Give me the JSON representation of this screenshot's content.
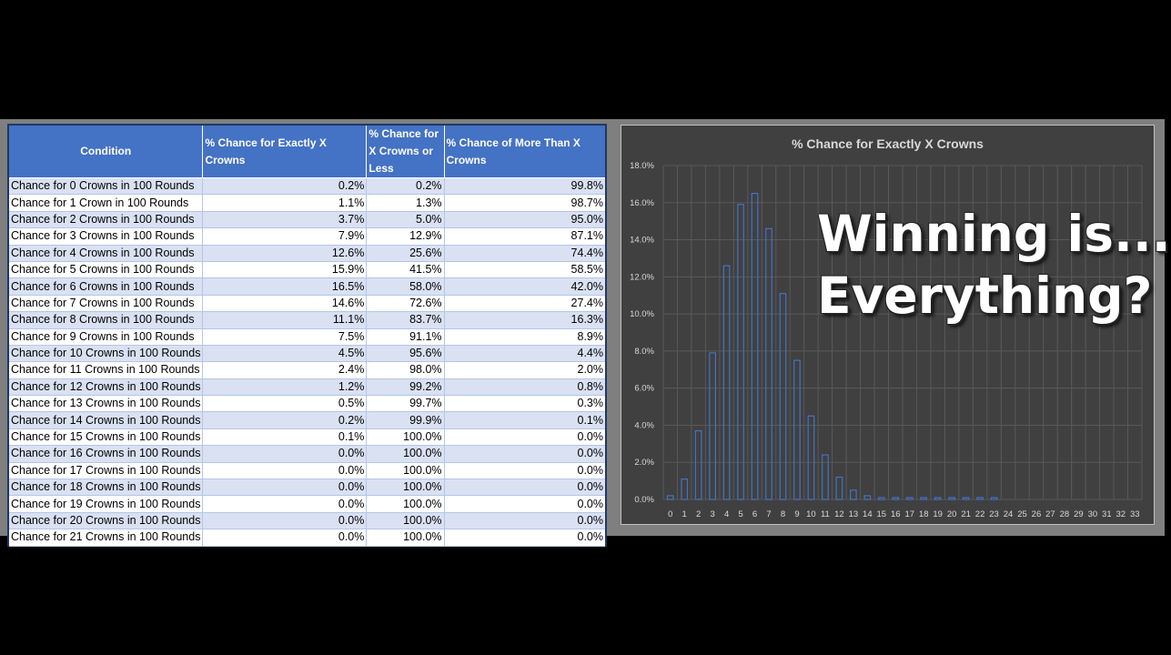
{
  "table": {
    "headers": [
      "Condition",
      "% Chance for Exactly X Crowns",
      "% Chance for X Crowns or Less",
      "% Chance of More Than X Crowns"
    ],
    "rows": [
      [
        "Chance for 0 Crowns in 100 Rounds",
        "0.2%",
        "0.2%",
        "99.8%"
      ],
      [
        "Chance for 1 Crown in 100 Rounds",
        "1.1%",
        "1.3%",
        "98.7%"
      ],
      [
        "Chance for 2 Crowns in 100 Rounds",
        "3.7%",
        "5.0%",
        "95.0%"
      ],
      [
        "Chance for 3 Crowns in 100 Rounds",
        "7.9%",
        "12.9%",
        "87.1%"
      ],
      [
        "Chance for 4 Crowns in 100 Rounds",
        "12.6%",
        "25.6%",
        "74.4%"
      ],
      [
        "Chance for 5 Crowns in 100 Rounds",
        "15.9%",
        "41.5%",
        "58.5%"
      ],
      [
        "Chance for 6 Crowns in 100 Rounds",
        "16.5%",
        "58.0%",
        "42.0%"
      ],
      [
        "Chance for 7 Crowns in 100 Rounds",
        "14.6%",
        "72.6%",
        "27.4%"
      ],
      [
        "Chance for 8 Crowns in 100 Rounds",
        "11.1%",
        "83.7%",
        "16.3%"
      ],
      [
        "Chance for 9 Crowns in 100 Rounds",
        "7.5%",
        "91.1%",
        "8.9%"
      ],
      [
        "Chance for 10 Crowns in 100 Rounds",
        "4.5%",
        "95.6%",
        "4.4%"
      ],
      [
        "Chance for 11 Crowns in 100 Rounds",
        "2.4%",
        "98.0%",
        "2.0%"
      ],
      [
        "Chance for 12 Crowns in 100 Rounds",
        "1.2%",
        "99.2%",
        "0.8%"
      ],
      [
        "Chance for 13 Crowns in 100 Rounds",
        "0.5%",
        "99.7%",
        "0.3%"
      ],
      [
        "Chance for 14 Crowns in 100 Rounds",
        "0.2%",
        "99.9%",
        "0.1%"
      ],
      [
        "Chance for 15 Crowns in 100 Rounds",
        "0.1%",
        "100.0%",
        "0.0%"
      ],
      [
        "Chance for 16 Crowns in 100 Rounds",
        "0.0%",
        "100.0%",
        "0.0%"
      ],
      [
        "Chance for 17 Crowns in 100 Rounds",
        "0.0%",
        "100.0%",
        "0.0%"
      ],
      [
        "Chance for 18 Crowns in 100 Rounds",
        "0.0%",
        "100.0%",
        "0.0%"
      ],
      [
        "Chance for 19 Crowns in 100 Rounds",
        "0.0%",
        "100.0%",
        "0.0%"
      ],
      [
        "Chance for 20 Crowns in 100 Rounds",
        "0.0%",
        "100.0%",
        "0.0%"
      ],
      [
        "Chance for 21 Crowns in 100 Rounds",
        "0.0%",
        "100.0%",
        "0.0%"
      ]
    ]
  },
  "overlay": {
    "line1": "Winning is...",
    "line2": "Everything?"
  },
  "colors": {
    "header_bg": "#4472c4",
    "band_bg": "#d9e1f2",
    "chart_bg": "#404040",
    "bar_stroke": "#4472c4"
  },
  "chart_data": {
    "type": "bar",
    "title": "% Chance for Exactly X Crowns",
    "categories": [
      "0",
      "1",
      "2",
      "3",
      "4",
      "5",
      "6",
      "7",
      "8",
      "9",
      "10",
      "11",
      "12",
      "13",
      "14",
      "15",
      "16",
      "17",
      "18",
      "19",
      "20",
      "21",
      "22",
      "23",
      "24",
      "25",
      "26",
      "27",
      "28",
      "29",
      "30",
      "31",
      "32",
      "33"
    ],
    "values": [
      0.2,
      1.1,
      3.7,
      7.9,
      12.6,
      15.9,
      16.5,
      14.6,
      11.1,
      7.5,
      4.5,
      2.4,
      1.2,
      0.5,
      0.2,
      0.1,
      0.0,
      0.0,
      0.0,
      0.0,
      0.0,
      0.0,
      0.0,
      0.0,
      null,
      null,
      null,
      null,
      null,
      null,
      null,
      null,
      null,
      null
    ],
    "y_ticks": [
      "0.0%",
      "2.0%",
      "4.0%",
      "6.0%",
      "8.0%",
      "10.0%",
      "12.0%",
      "14.0%",
      "16.0%",
      "18.0%"
    ],
    "ylim": [
      0,
      18
    ],
    "grid": true,
    "legend": "none"
  }
}
